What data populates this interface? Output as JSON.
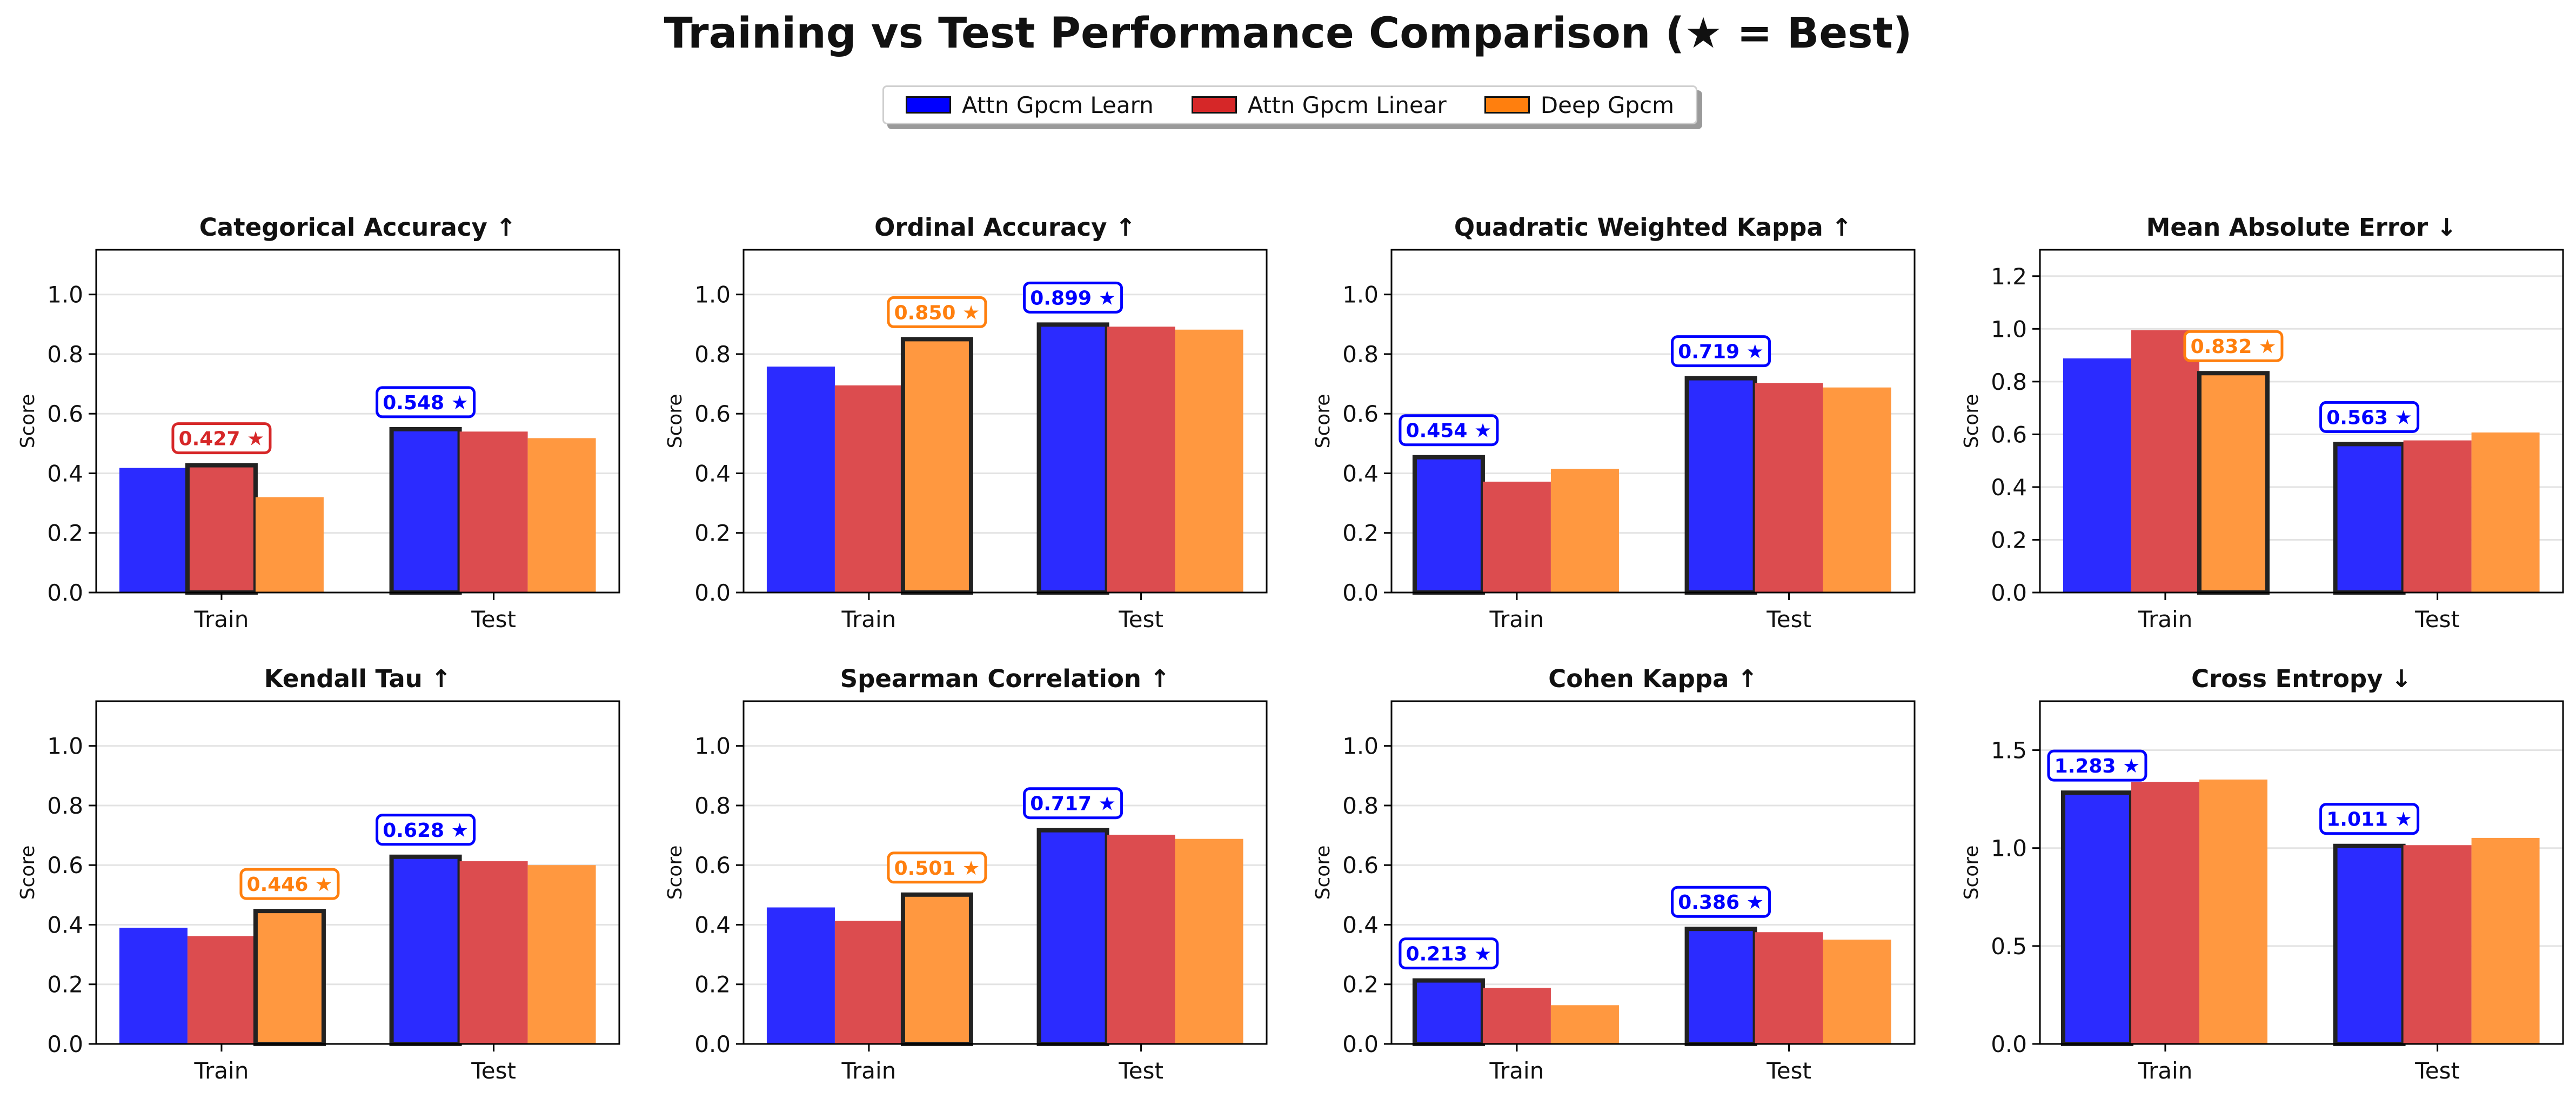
{
  "title": "Training vs Test Performance Comparison (★ = Best)",
  "legend": [
    {
      "label": "Attn Gpcm Learn",
      "color": "#0000ff"
    },
    {
      "label": "Attn Gpcm Linear",
      "color": "#d62728"
    },
    {
      "label": "Deep Gpcm",
      "color": "#ff7f0e"
    }
  ],
  "colors": {
    "learn": "#2b2bff",
    "linear": "#dc4c4f",
    "deep": "#ff9840"
  },
  "chart_data": [
    {
      "type": "bar",
      "title": "Categorical Accuracy ↑",
      "ylabel": "Score",
      "categories": [
        "Train",
        "Test"
      ],
      "ylim": [
        0,
        1.15
      ],
      "yticks": [
        0.0,
        0.2,
        0.4,
        0.6,
        0.8,
        1.0
      ],
      "tick_format": "0.0",
      "series": [
        {
          "name": "Attn Gpcm Learn",
          "values": [
            0.418,
            0.548
          ]
        },
        {
          "name": "Attn Gpcm Linear",
          "values": [
            0.427,
            0.54
          ]
        },
        {
          "name": "Deep Gpcm",
          "values": [
            0.32,
            0.518
          ]
        }
      ],
      "best": [
        {
          "category": 0,
          "series": 1,
          "label": "0.427 ★"
        },
        {
          "category": 1,
          "series": 0,
          "label": "0.548 ★"
        }
      ]
    },
    {
      "type": "bar",
      "title": "Ordinal Accuracy ↑",
      "ylabel": "Score",
      "categories": [
        "Train",
        "Test"
      ],
      "ylim": [
        0,
        1.15
      ],
      "yticks": [
        0.0,
        0.2,
        0.4,
        0.6,
        0.8,
        1.0
      ],
      "tick_format": "0.0",
      "series": [
        {
          "name": "Attn Gpcm Learn",
          "values": [
            0.758,
            0.899
          ]
        },
        {
          "name": "Attn Gpcm Linear",
          "values": [
            0.695,
            0.892
          ]
        },
        {
          "name": "Deep Gpcm",
          "values": [
            0.85,
            0.882
          ]
        }
      ],
      "best": [
        {
          "category": 0,
          "series": 2,
          "label": "0.850 ★"
        },
        {
          "category": 1,
          "series": 0,
          "label": "0.899 ★"
        }
      ]
    },
    {
      "type": "bar",
      "title": "Quadratic Weighted Kappa ↑",
      "ylabel": "Score",
      "categories": [
        "Train",
        "Test"
      ],
      "ylim": [
        0,
        1.15
      ],
      "yticks": [
        0.0,
        0.2,
        0.4,
        0.6,
        0.8,
        1.0
      ],
      "tick_format": "0.0",
      "series": [
        {
          "name": "Attn Gpcm Learn",
          "values": [
            0.454,
            0.719
          ]
        },
        {
          "name": "Attn Gpcm Linear",
          "values": [
            0.372,
            0.703
          ]
        },
        {
          "name": "Deep Gpcm",
          "values": [
            0.415,
            0.688
          ]
        }
      ],
      "best": [
        {
          "category": 0,
          "series": 0,
          "label": "0.454 ★"
        },
        {
          "category": 1,
          "series": 0,
          "label": "0.719 ★"
        }
      ]
    },
    {
      "type": "bar",
      "title": "Mean Absolute Error ↓",
      "ylabel": "Score",
      "categories": [
        "Train",
        "Test"
      ],
      "ylim": [
        0,
        1.3
      ],
      "yticks": [
        0.0,
        0.2,
        0.4,
        0.6,
        0.8,
        1.0,
        1.2
      ],
      "tick_format": "0.0",
      "series": [
        {
          "name": "Attn Gpcm Learn",
          "values": [
            0.888,
            0.563
          ]
        },
        {
          "name": "Attn Gpcm Linear",
          "values": [
            0.995,
            0.577
          ]
        },
        {
          "name": "Deep Gpcm",
          "values": [
            0.832,
            0.607
          ]
        }
      ],
      "best": [
        {
          "category": 0,
          "series": 2,
          "label": "0.832 ★"
        },
        {
          "category": 1,
          "series": 0,
          "label": "0.563 ★"
        }
      ]
    },
    {
      "type": "bar",
      "title": "Kendall Tau ↑",
      "ylabel": "Score",
      "categories": [
        "Train",
        "Test"
      ],
      "ylim": [
        0,
        1.15
      ],
      "yticks": [
        0.0,
        0.2,
        0.4,
        0.6,
        0.8,
        1.0
      ],
      "tick_format": "0.0",
      "series": [
        {
          "name": "Attn Gpcm Learn",
          "values": [
            0.39,
            0.628
          ]
        },
        {
          "name": "Attn Gpcm Linear",
          "values": [
            0.362,
            0.613
          ]
        },
        {
          "name": "Deep Gpcm",
          "values": [
            0.446,
            0.6
          ]
        }
      ],
      "best": [
        {
          "category": 0,
          "series": 2,
          "label": "0.446 ★"
        },
        {
          "category": 1,
          "series": 0,
          "label": "0.628 ★"
        }
      ]
    },
    {
      "type": "bar",
      "title": "Spearman Correlation ↑",
      "ylabel": "Score",
      "categories": [
        "Train",
        "Test"
      ],
      "ylim": [
        0,
        1.15
      ],
      "yticks": [
        0.0,
        0.2,
        0.4,
        0.6,
        0.8,
        1.0
      ],
      "tick_format": "0.0",
      "series": [
        {
          "name": "Attn Gpcm Learn",
          "values": [
            0.458,
            0.717
          ]
        },
        {
          "name": "Attn Gpcm Linear",
          "values": [
            0.413,
            0.702
          ]
        },
        {
          "name": "Deep Gpcm",
          "values": [
            0.501,
            0.688
          ]
        }
      ],
      "best": [
        {
          "category": 0,
          "series": 2,
          "label": "0.501 ★"
        },
        {
          "category": 1,
          "series": 0,
          "label": "0.717 ★"
        }
      ]
    },
    {
      "type": "bar",
      "title": "Cohen Kappa ↑",
      "ylabel": "Score",
      "categories": [
        "Train",
        "Test"
      ],
      "ylim": [
        0,
        1.15
      ],
      "yticks": [
        0.0,
        0.2,
        0.4,
        0.6,
        0.8,
        1.0
      ],
      "tick_format": "0.0",
      "series": [
        {
          "name": "Attn Gpcm Learn",
          "values": [
            0.213,
            0.386
          ]
        },
        {
          "name": "Attn Gpcm Linear",
          "values": [
            0.188,
            0.375
          ]
        },
        {
          "name": "Deep Gpcm",
          "values": [
            0.13,
            0.35
          ]
        }
      ],
      "best": [
        {
          "category": 0,
          "series": 0,
          "label": "0.213 ★"
        },
        {
          "category": 1,
          "series": 0,
          "label": "0.386 ★"
        }
      ]
    },
    {
      "type": "bar",
      "title": "Cross Entropy ↓",
      "ylabel": "Score",
      "categories": [
        "Train",
        "Test"
      ],
      "ylim": [
        0,
        1.75
      ],
      "yticks": [
        0.0,
        0.5,
        1.0,
        1.5
      ],
      "tick_format": "0.0",
      "series": [
        {
          "name": "Attn Gpcm Learn",
          "values": [
            1.283,
            1.011
          ]
        },
        {
          "name": "Attn Gpcm Linear",
          "values": [
            1.338,
            1.015
          ]
        },
        {
          "name": "Deep Gpcm",
          "values": [
            1.35,
            1.052
          ]
        }
      ],
      "best": [
        {
          "category": 0,
          "series": 0,
          "label": "1.283 ★"
        },
        {
          "category": 1,
          "series": 0,
          "label": "1.011 ★"
        }
      ]
    }
  ]
}
